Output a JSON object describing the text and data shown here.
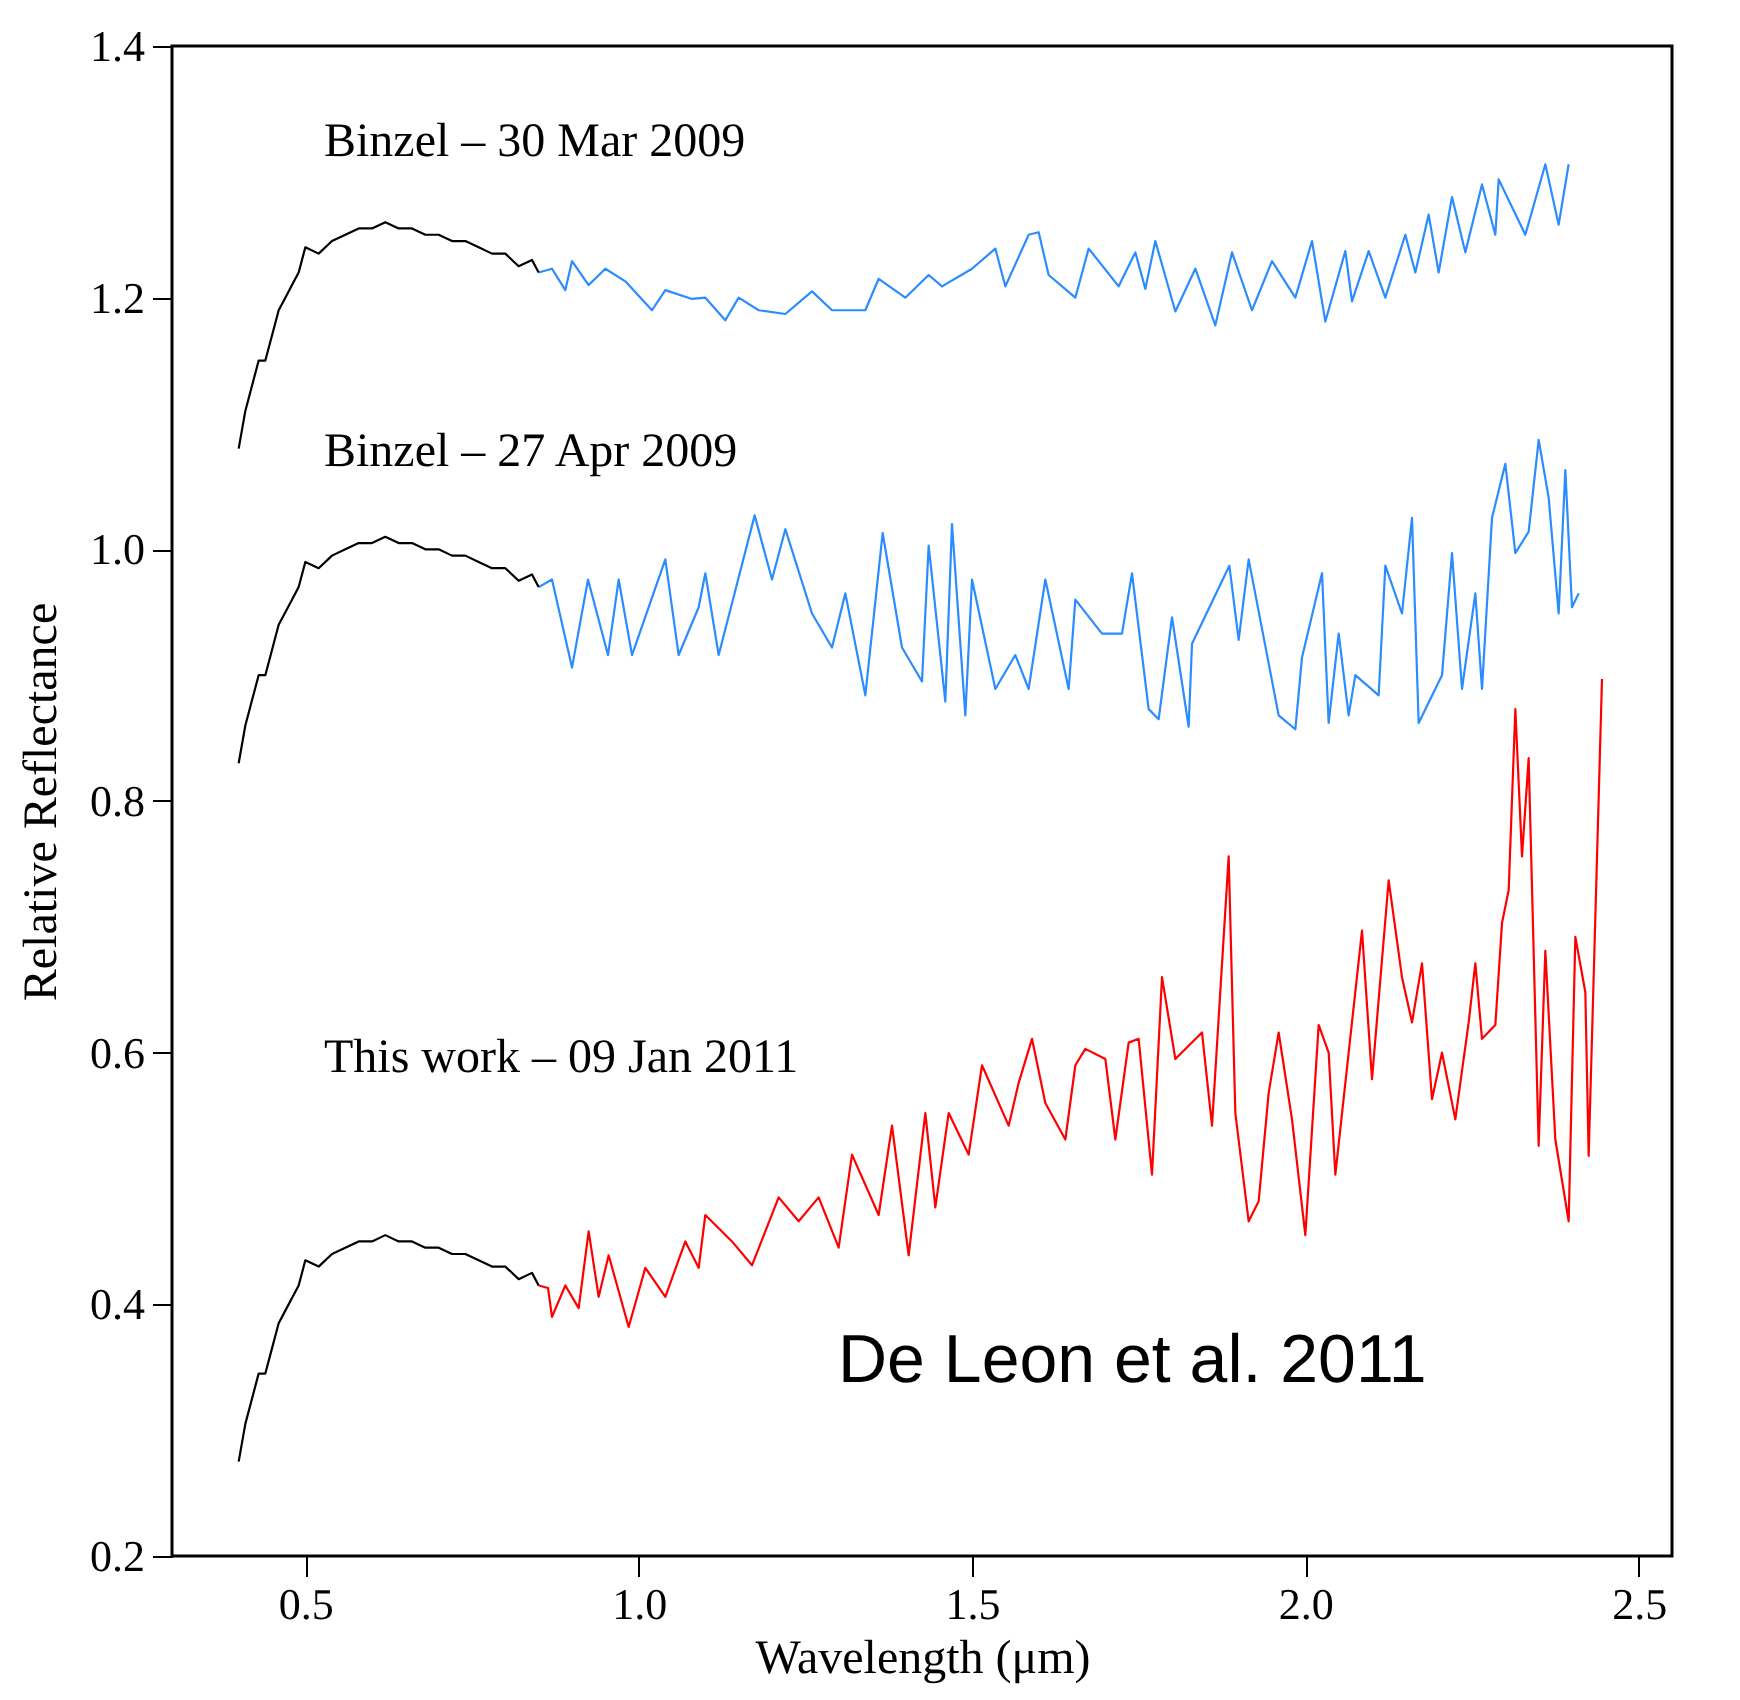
{
  "chart_data": {
    "type": "line",
    "xlabel": "Wavelength (μm)",
    "ylabel": "Relative Reflectance",
    "xlim": [
      0.3,
      2.55
    ],
    "ylim": [
      0.2,
      1.4
    ],
    "xticks": [
      0.5,
      {
        "value": 1,
        "label": "1.0"
      },
      1.5,
      {
        "value": 2,
        "label": "2.0"
      },
      2.5
    ],
    "yticks": [
      0.2,
      0.4,
      0.6,
      0.8,
      {
        "value": 1,
        "label": "1.0"
      },
      1.2,
      1.4
    ],
    "annotations": [
      "Binzel – 30 Mar 2009",
      "Binzel – 27 Apr 2009",
      "This work – 09 Jan 2011",
      "De Leon et al. 2011"
    ],
    "series": [
      {
        "color": "#2b8cff",
        "x": [
          0.85,
          0.87,
          0.89,
          0.9,
          0.925,
          0.95,
          0.98,
          1.02,
          1.04,
          1.08,
          1.1,
          1.13,
          1.15,
          1.18,
          1.22,
          1.26,
          1.29,
          1.34,
          1.36,
          1.4,
          1.435,
          1.455,
          1.5,
          1.535,
          1.55,
          1.585,
          1.6,
          1.615,
          1.655,
          1.675,
          1.72,
          1.745,
          1.76,
          1.775,
          1.805,
          1.835,
          1.865,
          1.89,
          1.92,
          1.95,
          1.985,
          2.01,
          2.03,
          2.06,
          2.07,
          2.095,
          2.12,
          2.15,
          2.165,
          2.185,
          2.2,
          2.22,
          2.24,
          2.265,
          2.285,
          2.29,
          2.33,
          2.36,
          2.38,
          2.395
        ],
        "values": [
          1.22,
          1.223,
          1.206,
          1.229,
          1.21,
          1.223,
          1.213,
          1.19,
          1.206,
          1.199,
          1.2,
          1.182,
          1.2,
          1.19,
          1.187,
          1.205,
          1.19,
          1.19,
          1.215,
          1.2,
          1.218,
          1.209,
          1.223,
          1.239,
          1.209,
          1.25,
          1.252,
          1.218,
          1.2,
          1.239,
          1.209,
          1.236,
          1.207,
          1.245,
          1.189,
          1.223,
          1.178,
          1.236,
          1.19,
          1.229,
          1.2,
          1.245,
          1.181,
          1.237,
          1.197,
          1.237,
          1.2,
          1.25,
          1.22,
          1.266,
          1.22,
          1.28,
          1.236,
          1.29,
          1.25,
          1.294,
          1.25,
          1.306,
          1.258,
          1.306
        ]
      },
      {
        "color": "#2b8cff",
        "x": [
          0.85,
          0.87,
          0.9,
          0.924,
          0.954,
          0.97,
          0.99,
          1.04,
          1.06,
          1.09,
          1.1,
          1.12,
          1.174,
          1.2,
          1.22,
          1.26,
          1.29,
          1.31,
          1.34,
          1.366,
          1.395,
          1.425,
          1.435,
          1.46,
          1.47,
          1.49,
          1.5,
          1.535,
          1.565,
          1.585,
          1.61,
          1.645,
          1.655,
          1.695,
          1.725,
          1.74,
          1.765,
          1.78,
          1.8,
          1.825,
          1.83,
          1.886,
          1.9,
          1.915,
          1.96,
          1.985,
          1.995,
          2.025,
          2.035,
          2.05,
          2.065,
          2.075,
          2.11,
          2.12,
          2.145,
          2.16,
          2.17,
          2.205,
          2.22,
          2.235,
          2.255,
          2.265,
          2.28,
          2.3,
          2.315,
          2.335,
          2.35,
          2.365,
          2.38,
          2.39,
          2.4,
          2.41
        ],
        "values": [
          0.97,
          0.976,
          0.906,
          0.976,
          0.916,
          0.976,
          0.916,
          0.992,
          0.916,
          0.954,
          0.981,
          0.916,
          1.027,
          0.976,
          1.016,
          0.949,
          0.922,
          0.965,
          0.884,
          1.013,
          0.922,
          0.895,
          1.003,
          0.879,
          1.02,
          0.868,
          0.976,
          0.889,
          0.916,
          0.889,
          0.976,
          0.889,
          0.96,
          0.933,
          0.933,
          0.981,
          0.873,
          0.865,
          0.946,
          0.859,
          0.925,
          0.987,
          0.928,
          0.992,
          0.868,
          0.857,
          0.914,
          0.981,
          0.862,
          0.933,
          0.868,
          0.9,
          0.884,
          0.987,
          0.949,
          1.025,
          0.862,
          0.9,
          0.997,
          0.889,
          0.965,
          0.889,
          1.025,
          1.068,
          0.997,
          1.014,
          1.087,
          1.041,
          0.949,
          1.063,
          0.954,
          0.965
        ]
      },
      {
        "color": "#ff0000",
        "x": [
          0.85,
          0.864,
          0.87,
          0.89,
          0.91,
          0.925,
          0.94,
          0.955,
          0.985,
          1.01,
          1.04,
          1.07,
          1.09,
          1.1,
          1.14,
          1.17,
          1.21,
          1.24,
          1.27,
          1.3,
          1.32,
          1.36,
          1.38,
          1.405,
          1.43,
          1.445,
          1.465,
          1.495,
          1.515,
          1.555,
          1.57,
          1.59,
          1.61,
          1.64,
          1.655,
          1.67,
          1.7,
          1.715,
          1.735,
          1.75,
          1.77,
          1.785,
          1.805,
          1.845,
          1.86,
          1.885,
          1.895,
          1.915,
          1.93,
          1.945,
          1.96,
          1.98,
          2.0,
          2.02,
          2.035,
          2.045,
          2.065,
          2.085,
          2.1,
          2.125,
          2.145,
          2.16,
          2.175,
          2.19,
          2.205,
          2.225,
          2.245,
          2.255,
          2.265,
          2.285,
          2.295,
          2.305,
          2.315,
          2.325,
          2.335,
          2.35,
          2.36,
          2.375,
          2.395,
          2.405,
          2.42,
          2.425,
          2.445
        ],
        "values": [
          0.415,
          0.413,
          0.39,
          0.415,
          0.397,
          0.458,
          0.406,
          0.439,
          0.382,
          0.429,
          0.406,
          0.45,
          0.429,
          0.471,
          0.45,
          0.431,
          0.485,
          0.466,
          0.485,
          0.445,
          0.519,
          0.471,
          0.542,
          0.439,
          0.552,
          0.477,
          0.552,
          0.519,
          0.59,
          0.542,
          0.576,
          0.611,
          0.56,
          0.531,
          0.59,
          0.603,
          0.595,
          0.531,
          0.608,
          0.611,
          0.503,
          0.66,
          0.595,
          0.616,
          0.542,
          0.756,
          0.552,
          0.466,
          0.482,
          0.568,
          0.616,
          0.547,
          0.455,
          0.622,
          0.6,
          0.503,
          0.6,
          0.697,
          0.579,
          0.737,
          0.66,
          0.624,
          0.671,
          0.563,
          0.6,
          0.547,
          0.624,
          0.671,
          0.611,
          0.622,
          0.703,
          0.729,
          0.873,
          0.756,
          0.834,
          0.526,
          0.681,
          0.531,
          0.466,
          0.692,
          0.648,
          0.518,
          0.897
        ]
      },
      {
        "color": "#000000",
        "x": [
          0.4,
          0.41,
          0.42,
          0.43,
          0.44,
          0.45,
          0.46,
          0.47,
          0.48,
          0.49,
          0.5,
          0.52,
          0.54,
          0.56,
          0.58,
          0.6,
          0.62,
          0.64,
          0.66,
          0.68,
          0.7,
          0.72,
          0.74,
          0.76,
          0.78,
          0.8,
          0.82,
          0.84,
          0.85
        ],
        "values": [
          1.08,
          1.11,
          1.13,
          1.15,
          1.15,
          1.17,
          1.19,
          1.2,
          1.21,
          1.22,
          1.24,
          1.235,
          1.245,
          1.25,
          1.255,
          1.255,
          1.26,
          1.255,
          1.255,
          1.25,
          1.25,
          1.245,
          1.245,
          1.24,
          1.235,
          1.235,
          1.225,
          1.23,
          1.22
        ]
      },
      {
        "color": "#000000",
        "x": [
          0.4,
          0.41,
          0.42,
          0.43,
          0.44,
          0.45,
          0.46,
          0.47,
          0.48,
          0.49,
          0.5,
          0.52,
          0.54,
          0.56,
          0.58,
          0.6,
          0.62,
          0.64,
          0.66,
          0.68,
          0.7,
          0.72,
          0.74,
          0.76,
          0.78,
          0.8,
          0.82,
          0.84,
          0.85
        ],
        "values": [
          0.83,
          0.86,
          0.88,
          0.9,
          0.9,
          0.92,
          0.94,
          0.95,
          0.96,
          0.97,
          0.99,
          0.985,
          0.995,
          1.0,
          1.005,
          1.005,
          1.01,
          1.005,
          1.005,
          1.0,
          1.0,
          0.995,
          0.995,
          0.99,
          0.985,
          0.985,
          0.975,
          0.98,
          0.97
        ]
      },
      {
        "color": "#000000",
        "x": [
          0.4,
          0.41,
          0.42,
          0.43,
          0.44,
          0.45,
          0.46,
          0.47,
          0.48,
          0.49,
          0.5,
          0.52,
          0.54,
          0.56,
          0.58,
          0.6,
          0.62,
          0.64,
          0.66,
          0.68,
          0.7,
          0.72,
          0.74,
          0.76,
          0.78,
          0.8,
          0.82,
          0.84,
          0.85
        ],
        "values": [
          0.275,
          0.305,
          0.325,
          0.345,
          0.345,
          0.365,
          0.385,
          0.395,
          0.405,
          0.415,
          0.435,
          0.43,
          0.44,
          0.445,
          0.45,
          0.45,
          0.455,
          0.45,
          0.45,
          0.445,
          0.445,
          0.44,
          0.44,
          0.435,
          0.43,
          0.43,
          0.42,
          0.425,
          0.415
        ]
      }
    ]
  }
}
